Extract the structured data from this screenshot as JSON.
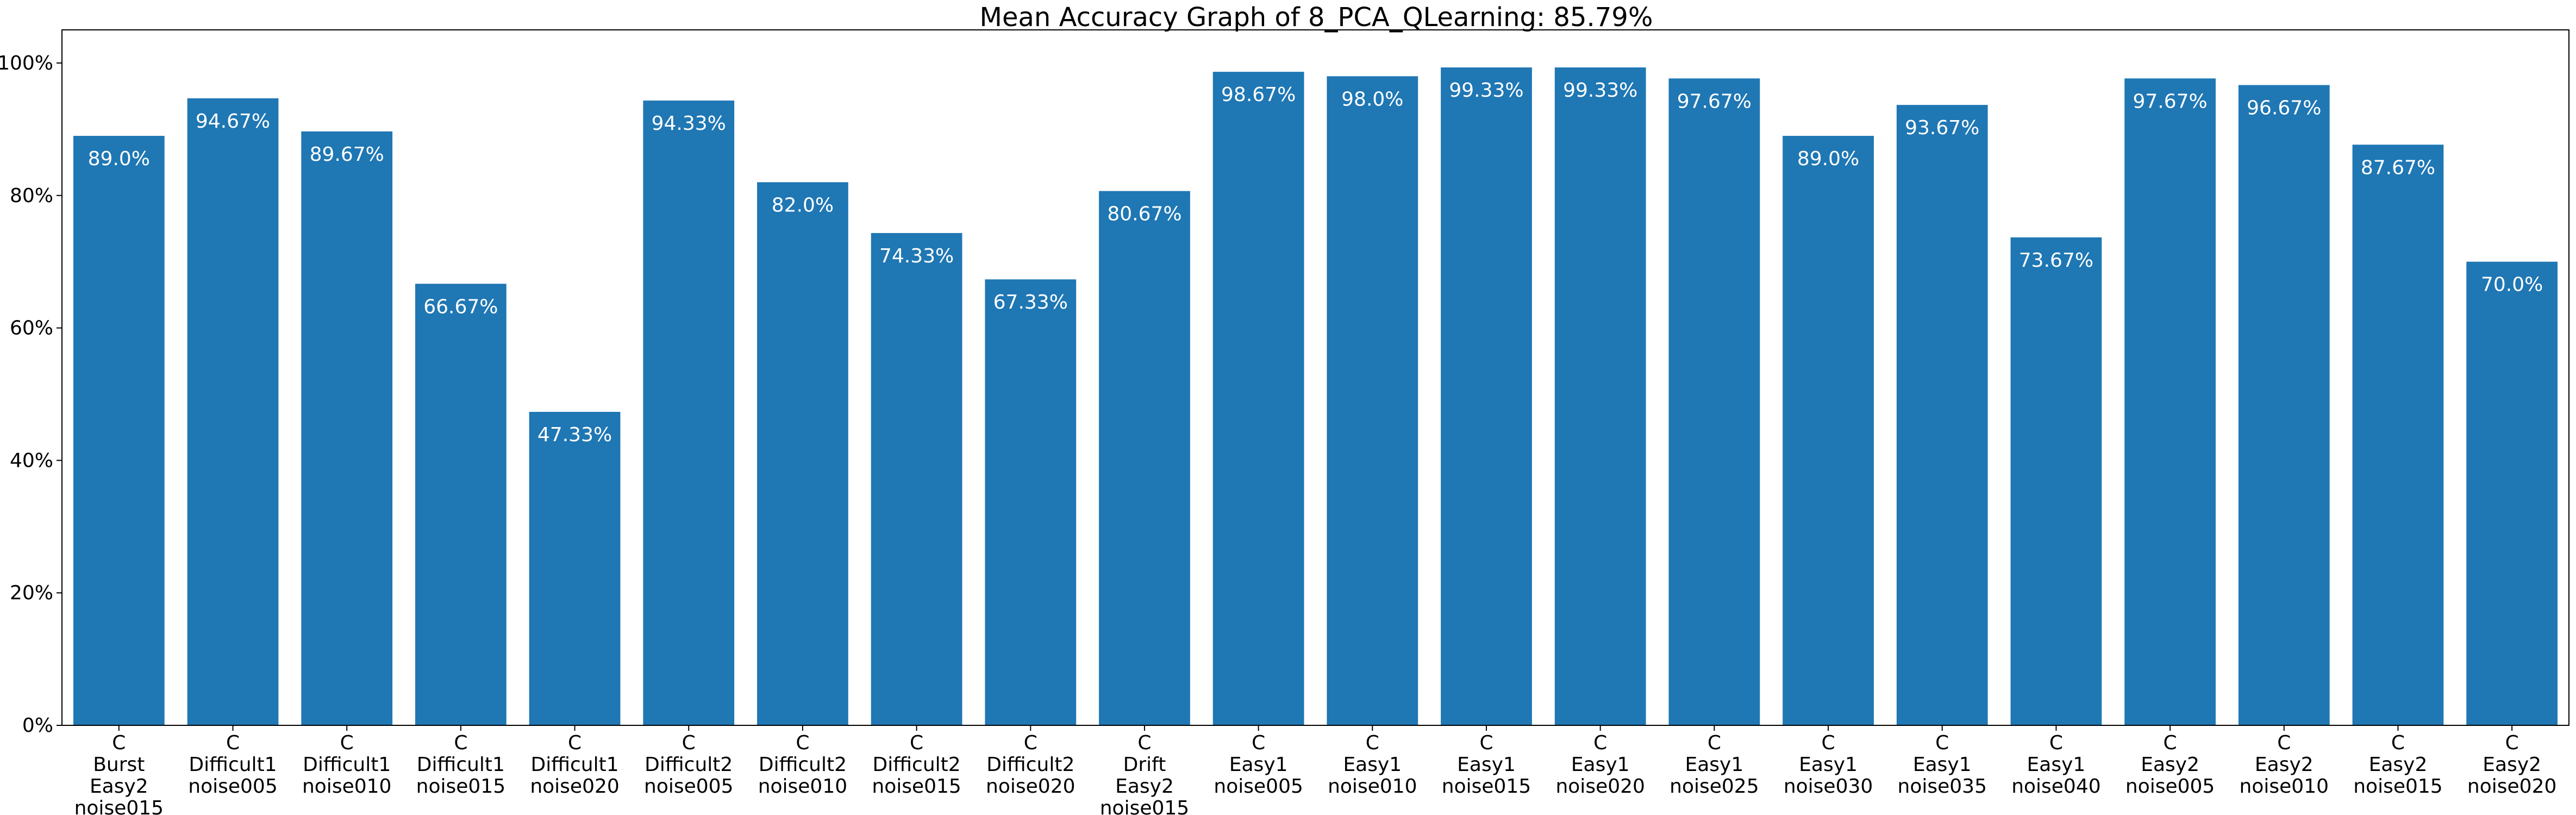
{
  "chart_data": {
    "type": "bar",
    "title": "Mean Accuracy Graph of 8_PCA_QLearning: 85.79%",
    "xlabel": "",
    "ylabel": "",
    "ylim": [
      0,
      105
    ],
    "yticks": [
      0,
      20,
      40,
      60,
      80,
      100
    ],
    "ytick_labels": [
      "0%",
      "20%",
      "40%",
      "60%",
      "80%",
      "100%"
    ],
    "grid": false,
    "bar_color": "#1f77b4",
    "categories": [
      [
        "C",
        "Burst",
        "Easy2",
        "noise015"
      ],
      [
        "C",
        "Difficult1",
        "noise005"
      ],
      [
        "C",
        "Difficult1",
        "noise010"
      ],
      [
        "C",
        "Difficult1",
        "noise015"
      ],
      [
        "C",
        "Difficult1",
        "noise020"
      ],
      [
        "C",
        "Difficult2",
        "noise005"
      ],
      [
        "C",
        "Difficult2",
        "noise010"
      ],
      [
        "C",
        "Difficult2",
        "noise015"
      ],
      [
        "C",
        "Difficult2",
        "noise020"
      ],
      [
        "C",
        "Drift",
        "Easy2",
        "noise015"
      ],
      [
        "C",
        "Easy1",
        "noise005"
      ],
      [
        "C",
        "Easy1",
        "noise010"
      ],
      [
        "C",
        "Easy1",
        "noise015"
      ],
      [
        "C",
        "Easy1",
        "noise020"
      ],
      [
        "C",
        "Easy1",
        "noise025"
      ],
      [
        "C",
        "Easy1",
        "noise030"
      ],
      [
        "C",
        "Easy1",
        "noise035"
      ],
      [
        "C",
        "Easy1",
        "noise040"
      ],
      [
        "C",
        "Easy2",
        "noise005"
      ],
      [
        "C",
        "Easy2",
        "noise010"
      ],
      [
        "C",
        "Easy2",
        "noise015"
      ],
      [
        "C",
        "Easy2",
        "noise020"
      ]
    ],
    "values": [
      89.0,
      94.67,
      89.67,
      66.67,
      47.33,
      94.33,
      82.0,
      74.33,
      67.33,
      80.67,
      98.67,
      98.0,
      99.33,
      99.33,
      97.67,
      89.0,
      93.67,
      73.67,
      97.67,
      96.67,
      87.67,
      70.0
    ],
    "data_labels": [
      "89.0%",
      "94.67%",
      "89.67%",
      "66.67%",
      "47.33%",
      "94.33%",
      "82.0%",
      "74.33%",
      "67.33%",
      "80.67%",
      "98.67%",
      "98.0%",
      "99.33%",
      "99.33%",
      "97.67%",
      "89.0%",
      "93.67%",
      "73.67%",
      "97.67%",
      "96.67%",
      "87.67%",
      "70.0%"
    ]
  }
}
